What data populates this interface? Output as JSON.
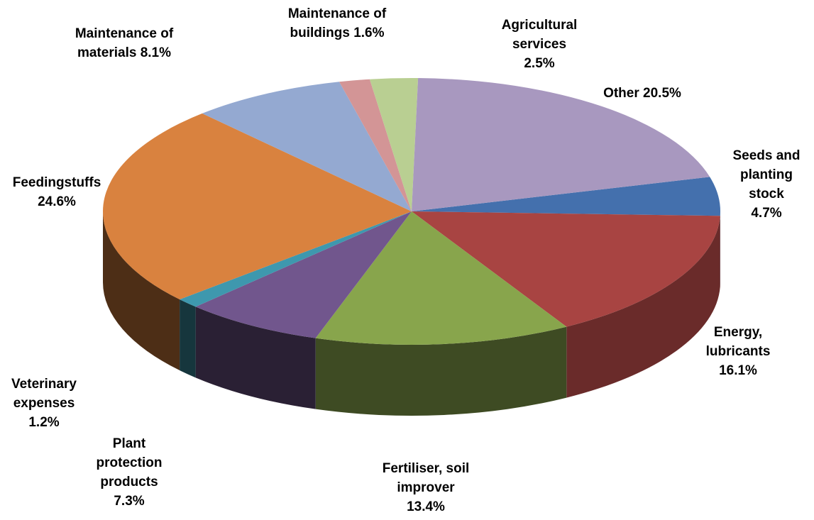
{
  "chart_data": {
    "type": "pie3d",
    "categories": [
      "Seeds and planting stock",
      "Energy, lubricants",
      "Fertiliser, soil improver",
      "Plant protection products",
      "Veterinary expenses",
      "Feedingstuffs",
      "Maintenance of materials",
      "Maintenance of buildings",
      "Agricultural services",
      "Other"
    ],
    "values": [
      4.7,
      16.1,
      13.4,
      7.3,
      1.2,
      24.6,
      8.1,
      1.6,
      2.5,
      20.5
    ],
    "value_labels": [
      "4.7%",
      "16.1%",
      "13.4%",
      "7.3%",
      "1.2%",
      "24.6%",
      "8.1%",
      "1.6%",
      "2.5%",
      "20.5%"
    ],
    "colors": [
      "#4470ad",
      "#a84442",
      "#88a54c",
      "#71568d",
      "#3e98ae",
      "#d9823f",
      "#94a9d1",
      "#d39596",
      "#b9cf92",
      "#a898bf"
    ]
  }
}
